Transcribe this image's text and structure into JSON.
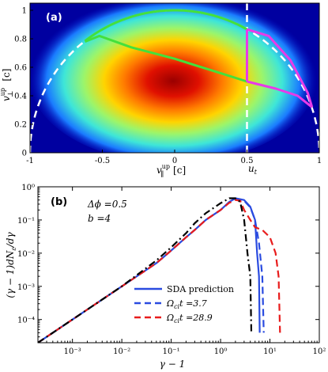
{
  "chart_data": [
    {
      "type": "heatmap",
      "panel_label": "(a)",
      "xlabel": "v_∥^up [c]",
      "ylabel": "v_⊥^up [c]",
      "xlim": [
        -1,
        1
      ],
      "ylim": [
        0,
        1.05
      ],
      "xticks": [
        "-1",
        "-0.5",
        "0",
        "0.5",
        "1"
      ],
      "yticks": [
        "0",
        "0.2",
        "0.4",
        "0.6",
        "0.8",
        "1"
      ],
      "marker_label": "u_t",
      "marker_x": 0.5,
      "colors": {
        "background": "#0000a0",
        "green": "#44e03c",
        "magenta": "#e83ae8",
        "white": "#ffffff"
      },
      "density_peak": {
        "x": -0.05,
        "y": 0.52
      },
      "curves": {
        "white_dashed_circle": {
          "center": [
            0,
            0
          ],
          "radius": 1
        },
        "green_arc": {
          "center": [
            0,
            0
          ],
          "radius": 1,
          "from_x": -0.62,
          "to_x": 0.5
        },
        "green_lower": [
          [
            -0.62,
            0.78
          ],
          [
            -0.52,
            0.82
          ],
          [
            -0.3,
            0.74
          ],
          [
            0,
            0.66
          ],
          [
            0.25,
            0.58
          ],
          [
            0.5,
            0.5
          ]
        ],
        "magenta_vertical": {
          "x": 0.5,
          "y_from": 0.5,
          "y_to": 0.866
        },
        "magenta_upper": [
          [
            0.5,
            0.866
          ],
          [
            0.65,
            0.82
          ],
          [
            0.8,
            0.65
          ],
          [
            0.92,
            0.42
          ],
          [
            0.95,
            0.32
          ]
        ],
        "magenta_lower": [
          [
            0.5,
            0.5
          ],
          [
            0.7,
            0.45
          ],
          [
            0.85,
            0.4
          ],
          [
            0.95,
            0.32
          ]
        ]
      }
    },
    {
      "type": "line",
      "panel_label": "(b)",
      "xlabel": "γ − 1",
      "ylabel": "(γ − 1)dN_ε/dγ",
      "x_scale": "log",
      "y_scale": "log",
      "xlim": [
        0.0002,
        100
      ],
      "ylim": [
        2e-05,
        1
      ],
      "xticks": [
        "10⁻³",
        "10⁻²",
        "10⁻¹",
        "10⁰",
        "10¹",
        "10²"
      ],
      "yticks": [
        "10⁻⁴",
        "10⁻³",
        "10⁻²",
        "10⁻¹",
        "10⁰"
      ],
      "annotation_dphi": "Δϕ =0.5",
      "annotation_b": "b =4",
      "legend_position": "bottom-center",
      "series": [
        {
          "name": "SDA prediction",
          "style": "solid",
          "color": "#2a4be0",
          "points": [
            [
              0.0002,
              2e-05
            ],
            [
              0.0004,
              4e-05
            ],
            [
              0.001,
              0.0001
            ],
            [
              0.01,
              0.001
            ],
            [
              0.05,
              0.005
            ],
            [
              0.1,
              0.012
            ],
            [
              0.2,
              0.03
            ],
            [
              0.3,
              0.05
            ],
            [
              0.5,
              0.1
            ],
            [
              1,
              0.2
            ],
            [
              1.5,
              0.35
            ],
            [
              2,
              0.45
            ],
            [
              3,
              0.4
            ],
            [
              4,
              0.25
            ],
            [
              5,
              0.1
            ],
            [
              5.5,
              0.01
            ],
            [
              6,
              0.002
            ],
            [
              6.2,
              4e-05
            ]
          ]
        },
        {
          "name": "Ω_ci t =3.7",
          "style": "dashed",
          "color": "#2a4be0",
          "points": [
            [
              0.0002,
              2e-05
            ],
            [
              0.0004,
              4e-05
            ],
            [
              0.001,
              0.0001
            ],
            [
              0.01,
              0.001
            ],
            [
              0.05,
              0.005
            ],
            [
              0.1,
              0.012
            ],
            [
              0.2,
              0.03
            ],
            [
              0.3,
              0.05
            ],
            [
              0.5,
              0.1
            ],
            [
              1,
              0.2
            ],
            [
              1.5,
              0.34
            ],
            [
              2,
              0.42
            ],
            [
              3,
              0.38
            ],
            [
              4,
              0.24
            ],
            [
              5,
              0.1
            ],
            [
              6,
              0.02
            ],
            [
              7,
              0.002
            ],
            [
              7.5,
              4e-05
            ]
          ]
        },
        {
          "name": "Ω_ci t =28.9",
          "style": "dashed",
          "color": "#e81c1c",
          "points": [
            [
              0.0002,
              2e-05
            ],
            [
              0.0004,
              4e-05
            ],
            [
              0.001,
              0.0001
            ],
            [
              0.01,
              0.001
            ],
            [
              0.05,
              0.005
            ],
            [
              0.1,
              0.012
            ],
            [
              0.2,
              0.03
            ],
            [
              0.3,
              0.05
            ],
            [
              0.5,
              0.1
            ],
            [
              1,
              0.2
            ],
            [
              1.5,
              0.33
            ],
            [
              2,
              0.4
            ],
            [
              2.5,
              0.38
            ],
            [
              3,
              0.2
            ],
            [
              4,
              0.1
            ],
            [
              5,
              0.06
            ],
            [
              7,
              0.05
            ],
            [
              10,
              0.03
            ],
            [
              13,
              0.01
            ],
            [
              15,
              0.002
            ],
            [
              16,
              4e-05
            ]
          ]
        },
        {
          "name": "",
          "style": "dashdot",
          "color": "#000000",
          "points": [
            [
              0.0002,
              2e-05
            ],
            [
              0.0004,
              4e-05
            ],
            [
              0.001,
              0.0001
            ],
            [
              0.01,
              0.001
            ],
            [
              0.05,
              0.006
            ],
            [
              0.1,
              0.015
            ],
            [
              0.2,
              0.04
            ],
            [
              0.3,
              0.08
            ],
            [
              0.5,
              0.16
            ],
            [
              1,
              0.32
            ],
            [
              1.5,
              0.45
            ],
            [
              2,
              0.45
            ],
            [
              2.5,
              0.35
            ],
            [
              3,
              0.1
            ],
            [
              3.5,
              0.01
            ],
            [
              4,
              0.002
            ],
            [
              4.2,
              4e-05
            ]
          ]
        }
      ]
    }
  ]
}
